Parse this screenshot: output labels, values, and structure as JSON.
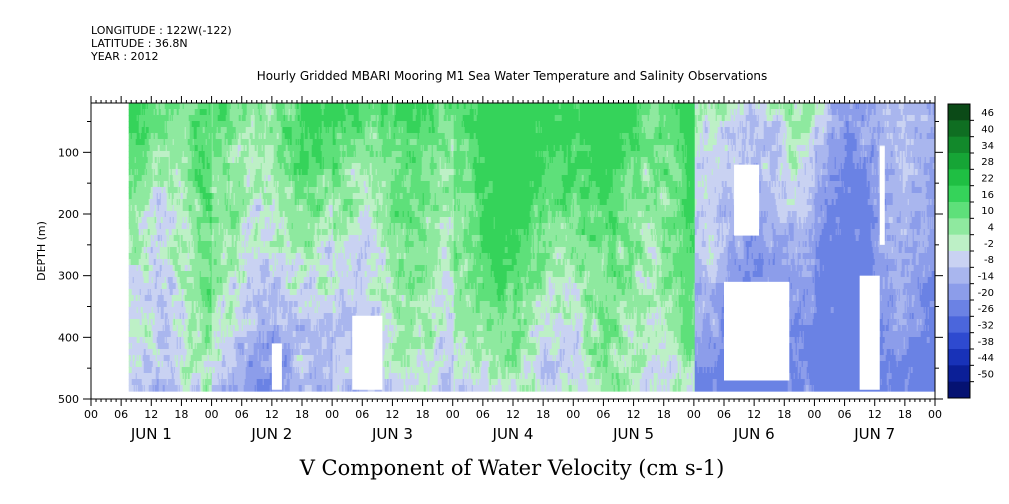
{
  "meta": {
    "longitude": "LONGITUDE : 122W(-122)",
    "latitude": "LATITUDE : 36.8N",
    "year": "YEAR : 2012"
  },
  "chart_data": {
    "type": "heatmap",
    "title": "Hourly Gridded MBARI Mooring M1 Sea Water Temperature and Salinity Observations",
    "xlabel": "V Component of Water Velocity (cm s-1)",
    "ylabel": "DEPTH (m)",
    "y_ticks": [
      100,
      200,
      300,
      400,
      500
    ],
    "ylim": [
      500,
      20
    ],
    "x_hour_labels": [
      "00",
      "06",
      "12",
      "18",
      "00",
      "06",
      "12",
      "18",
      "00",
      "06",
      "12",
      "18",
      "00",
      "06",
      "12",
      "18",
      "00",
      "06",
      "12",
      "18",
      "00",
      "06",
      "12",
      "18",
      "00",
      "06",
      "12",
      "18",
      "00"
    ],
    "x_day_labels": [
      "JUN 1",
      "JUN 2",
      "JUN 3",
      "JUN 4",
      "JUN 5",
      "JUN 6",
      "JUN 7"
    ],
    "xlim_hours": [
      0,
      168
    ],
    "data_start_hour": 7.5,
    "data_depth_range": [
      20,
      485
    ],
    "colorbar": {
      "levels": [
        "46",
        "40",
        "34",
        "28",
        "22",
        "16",
        "10",
        "4",
        "-2",
        "-8",
        "-14",
        "-20",
        "-26",
        "-32",
        "-38",
        "-44",
        "-50"
      ],
      "colors": [
        "#0b4a17",
        "#0f6e22",
        "#12892b",
        "#16a536",
        "#1fbf43",
        "#35d35a",
        "#5ee07a",
        "#8fe99f",
        "#bdf0c6",
        "#c9d2f2",
        "#a9b6ee",
        "#8c9dea",
        "#6b82e4",
        "#4b66dc",
        "#2e4ad0",
        "#1832b8",
        "#0b1f97",
        "#051272"
      ]
    },
    "day_profiles": [
      {
        "day": "JUN 1",
        "tendency": "mixed, stronger northward flow in upper 150 m"
      },
      {
        "day": "JUN 2",
        "tendency": "northward upper layer, southward below 250 m"
      },
      {
        "day": "JUN 3",
        "tendency": "northward upper layer"
      },
      {
        "day": "JUN 4",
        "tendency": "strong northward 50–250 m"
      },
      {
        "day": "JUN 5",
        "tendency": "strong northward upper layer, southward deep"
      },
      {
        "day": "JUN 6",
        "tendency": "predominantly southward"
      },
      {
        "day": "JUN 7",
        "tendency": "southward, weak"
      }
    ],
    "gaps_missing_data": [
      {
        "day_hour": [
          36,
          38
        ],
        "depth": [
          410,
          485
        ]
      },
      {
        "day_hour": [
          52,
          58
        ],
        "depth": [
          365,
          485
        ]
      },
      {
        "day_hour": [
          126,
          139
        ],
        "depth": [
          310,
          470
        ]
      },
      {
        "day_hour": [
          153,
          157
        ],
        "depth": [
          300,
          485
        ]
      },
      {
        "day_hour": [
          128,
          133
        ],
        "depth": [
          120,
          235
        ]
      },
      {
        "day_hour": [
          157,
          158
        ],
        "depth": [
          90,
          250
        ]
      }
    ]
  }
}
